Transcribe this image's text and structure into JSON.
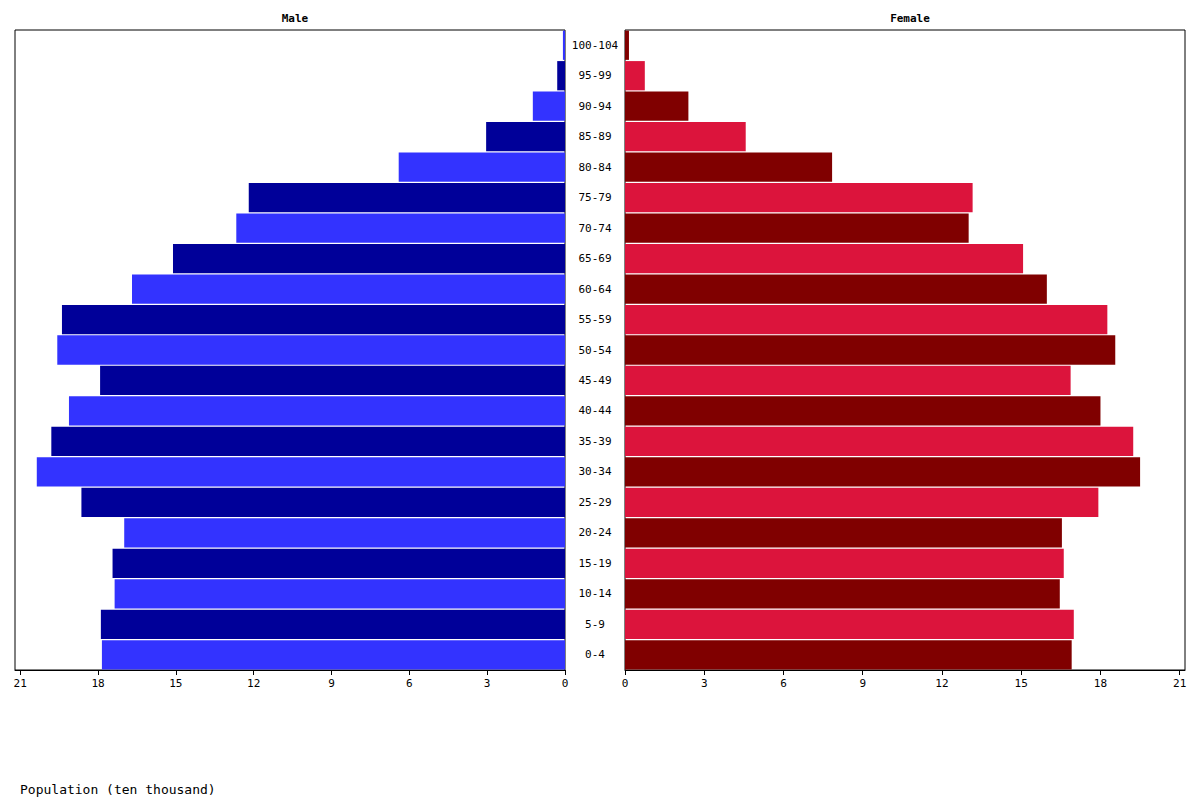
{
  "chart_data": {
    "type": "bar",
    "orientation": "horizontal",
    "categories": [
      "0-4",
      "5-9",
      "10-14",
      "15-19",
      "20-24",
      "25-29",
      "30-34",
      "35-39",
      "40-44",
      "45-49",
      "50-54",
      "55-59",
      "60-64",
      "65-69",
      "70-74",
      "75-79",
      "80-84",
      "85-89",
      "90-94",
      "95-99",
      "100-104"
    ],
    "series": [
      {
        "name": "Male",
        "colors": [
          "#3333ff",
          "#000099",
          "#3333ff",
          "#000099",
          "#3333ff",
          "#000099",
          "#3333ff",
          "#000099",
          "#3333ff",
          "#000099",
          "#3333ff",
          "#000099",
          "#3333ff",
          "#000099",
          "#3333ff",
          "#000099",
          "#3333ff",
          "#000099",
          "#3333ff",
          "#000099",
          "#3333ff"
        ],
        "values": [
          17.85,
          17.89,
          17.36,
          17.44,
          16.99,
          18.64,
          20.36,
          19.8,
          19.12,
          17.92,
          19.57,
          19.39,
          16.69,
          15.11,
          12.67,
          12.19,
          6.41,
          3.04,
          1.24,
          0.3,
          0.08
        ]
      },
      {
        "name": "Female",
        "colors": [
          "#800000",
          "#dc143c",
          "#800000",
          "#dc143c",
          "#800000",
          "#dc143c",
          "#800000",
          "#dc143c",
          "#800000",
          "#dc143c",
          "#800000",
          "#dc143c",
          "#800000",
          "#dc143c",
          "#800000",
          "#dc143c",
          "#800000",
          "#dc143c",
          "#800000",
          "#dc143c",
          "#800000"
        ],
        "values": [
          16.91,
          16.99,
          16.46,
          16.61,
          16.54,
          17.92,
          19.5,
          19.24,
          18.0,
          16.87,
          18.56,
          18.26,
          15.97,
          15.07,
          13.01,
          13.16,
          7.84,
          4.57,
          2.4,
          0.75,
          0.15
        ]
      }
    ],
    "xlabel": "Population (ten thousand)",
    "xlim": [
      0,
      21.2
    ],
    "xticks": [
      0,
      3,
      6,
      9,
      12,
      15,
      18,
      21
    ],
    "grid": false
  }
}
